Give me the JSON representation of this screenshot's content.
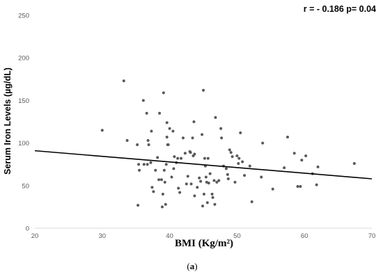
{
  "chart_data": {
    "type": "scatter",
    "title": "",
    "xlabel": "BMI (Kg/m²)",
    "ylabel": "Serum Iron Levels (µg/dL)",
    "xlim": [
      20,
      70
    ],
    "ylim": [
      0,
      250
    ],
    "x_ticks": [
      "20",
      "30",
      "40",
      "50",
      "60",
      "70"
    ],
    "y_ticks": [
      "0",
      "50",
      "100",
      "150",
      "200",
      "250"
    ],
    "grid": false,
    "legend": "none",
    "annotation": "r = - 0.186 p= 0.04",
    "caption_open": "(",
    "caption_letter": "a",
    "caption_close": ")",
    "point_color": "#595959",
    "line_color": "#000000",
    "trendline": {
      "x": [
        20,
        70
      ],
      "y": [
        91,
        58
      ]
    },
    "points": [
      [
        30,
        115
      ],
      [
        33.2,
        173
      ],
      [
        33.7,
        103
      ],
      [
        35.2,
        98
      ],
      [
        35.3,
        27
      ],
      [
        35.4,
        75
      ],
      [
        35.5,
        68
      ],
      [
        36.1,
        150
      ],
      [
        36.2,
        75
      ],
      [
        36.6,
        135
      ],
      [
        36.7,
        75
      ],
      [
        36.8,
        103
      ],
      [
        36.9,
        98
      ],
      [
        37.2,
        77
      ],
      [
        37.3,
        114
      ],
      [
        37.4,
        48
      ],
      [
        37.6,
        43
      ],
      [
        37.9,
        68
      ],
      [
        38.2,
        83
      ],
      [
        38.4,
        57
      ],
      [
        38.5,
        135
      ],
      [
        38.9,
        25
      ],
      [
        38.8,
        57
      ],
      [
        39.0,
        40
      ],
      [
        39.1,
        159
      ],
      [
        39.2,
        68
      ],
      [
        39.3,
        54
      ],
      [
        39.4,
        28
      ],
      [
        39.5,
        75
      ],
      [
        39.6,
        124
      ],
      [
        39.6,
        107
      ],
      [
        39.7,
        98
      ],
      [
        39.8,
        98
      ],
      [
        40.0,
        117
      ],
      [
        40.3,
        60
      ],
      [
        40.5,
        114
      ],
      [
        40.6,
        70
      ],
      [
        40.7,
        84
      ],
      [
        41.0,
        77
      ],
      [
        41.2,
        82
      ],
      [
        41.3,
        47
      ],
      [
        41.5,
        42
      ],
      [
        41.7,
        82
      ],
      [
        42.0,
        106
      ],
      [
        42.3,
        88
      ],
      [
        42.5,
        52
      ],
      [
        42.7,
        61
      ],
      [
        43.0,
        90
      ],
      [
        43.1,
        89
      ],
      [
        43.2,
        52
      ],
      [
        43.4,
        106
      ],
      [
        43.5,
        85
      ],
      [
        43.6,
        125
      ],
      [
        43.7,
        87
      ],
      [
        43.7,
        38
      ],
      [
        44.1,
        48
      ],
      [
        44.4,
        59
      ],
      [
        44.6,
        55
      ],
      [
        44.8,
        110
      ],
      [
        44.9,
        26
      ],
      [
        45.0,
        162
      ],
      [
        45.1,
        40
      ],
      [
        45.2,
        82
      ],
      [
        45.3,
        73
      ],
      [
        45.4,
        60
      ],
      [
        45.5,
        54
      ],
      [
        45.6,
        30
      ],
      [
        45.7,
        82
      ],
      [
        45.8,
        53
      ],
      [
        46.0,
        64
      ],
      [
        46.3,
        40
      ],
      [
        46.4,
        36
      ],
      [
        46.6,
        56
      ],
      [
        46.7,
        28
      ],
      [
        46.8,
        130
      ],
      [
        47.0,
        54
      ],
      [
        47.3,
        56
      ],
      [
        47.6,
        117
      ],
      [
        47.7,
        106
      ],
      [
        48.0,
        73
      ],
      [
        48.4,
        70
      ],
      [
        48.6,
        63
      ],
      [
        48.7,
        58
      ],
      [
        48.9,
        92
      ],
      [
        49.1,
        89
      ],
      [
        49.3,
        84
      ],
      [
        49.7,
        54
      ],
      [
        50.0,
        85
      ],
      [
        50.2,
        76
      ],
      [
        50.3,
        82
      ],
      [
        50.5,
        112
      ],
      [
        50.8,
        78
      ],
      [
        51.1,
        62
      ],
      [
        51.9,
        73
      ],
      [
        52.2,
        31
      ],
      [
        53.6,
        60
      ],
      [
        53.8,
        100
      ],
      [
        55.3,
        46
      ],
      [
        57.0,
        71
      ],
      [
        57.5,
        107
      ],
      [
        58.5,
        88
      ],
      [
        59.0,
        49
      ],
      [
        59.4,
        49
      ],
      [
        59.6,
        80
      ],
      [
        60.2,
        85
      ],
      [
        61.2,
        64
      ],
      [
        61.8,
        51
      ],
      [
        62.0,
        72
      ],
      [
        67.4,
        76
      ]
    ]
  }
}
